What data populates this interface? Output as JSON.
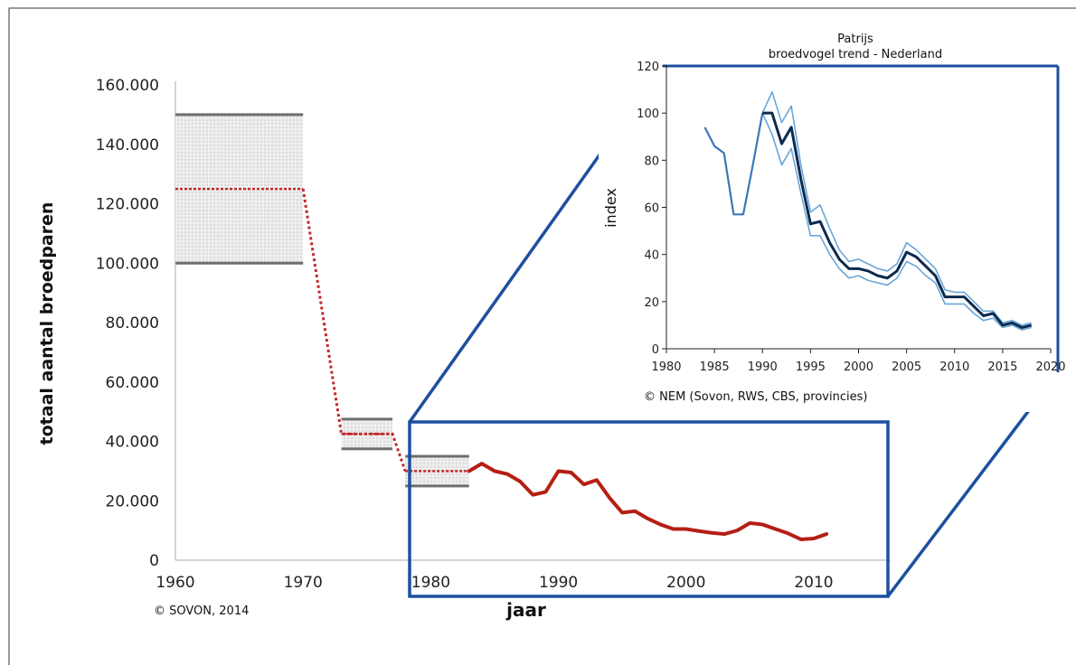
{
  "chart_data": [
    {
      "type": "line",
      "xlabel": "jaar",
      "ylabel": "totaal aantal broedparen",
      "xlim": [
        1960,
        2015
      ],
      "ylim": [
        0,
        160000
      ],
      "x_ticks": [
        "1960",
        "1970",
        "1980",
        "1990",
        "2000",
        "2010"
      ],
      "y_ticks": [
        "0",
        "20.000",
        "40.000",
        "60.000",
        "80.000",
        "100.000",
        "120.000",
        "140.000",
        "160.000"
      ],
      "credit": "© SOVON, 2014",
      "estimate_ranges": [
        {
          "x": [
            1960,
            1970
          ],
          "low": 100000,
          "mid": 125000,
          "high": 150000
        },
        {
          "x": [
            1973,
            1977
          ],
          "low": 37500,
          "mid": 42500,
          "high": 47500
        },
        {
          "x": [
            1978,
            1983
          ],
          "low": 25000,
          "mid": 30000,
          "high": 35000
        }
      ],
      "connector": [
        [
          1970,
          125000
        ],
        [
          1973,
          42500
        ],
        [
          1977,
          42500
        ],
        [
          1978,
          30000
        ]
      ],
      "series": [
        {
          "color": "#b41f14",
          "x": [
            1983,
            1984,
            1985,
            1986,
            1987,
            1988,
            1989,
            1990,
            1991,
            1992,
            1993,
            1994,
            1995,
            1996,
            1997,
            1998,
            1999,
            2000,
            2001,
            2002,
            2003,
            2004,
            2005,
            2006,
            2007,
            2008,
            2009,
            2010,
            2011
          ],
          "y": [
            30000,
            32500,
            30000,
            29000,
            26500,
            22000,
            23000,
            30000,
            29500,
            25500,
            27000,
            21000,
            16000,
            16500,
            14000,
            12000,
            10500,
            10500,
            9800,
            9200,
            8800,
            10000,
            12500,
            12000,
            10500,
            9000,
            7000,
            7300,
            8800
          ]
        }
      ]
    },
    {
      "type": "line",
      "title": "Patrijs",
      "subtitle": "broedvogel trend - Nederland",
      "ylabel": "index",
      "xlim": [
        1980,
        2020
      ],
      "ylim": [
        0,
        120
      ],
      "x_ticks": [
        "1980",
        "1985",
        "1990",
        "1995",
        "2000",
        "2005",
        "2010",
        "2015",
        "2020"
      ],
      "y_ticks": [
        "0",
        "20",
        "40",
        "60",
        "80",
        "100",
        "120"
      ],
      "credit": "© NEM (Sovon, RWS, CBS, provincies)",
      "series": [
        {
          "color": "#3a78b8",
          "x": [
            1984,
            1985,
            1986,
            1987,
            1988,
            1989,
            1990
          ],
          "y": [
            94,
            86,
            83,
            57,
            57,
            78,
            100
          ]
        },
        {
          "color": "#0b2a4f",
          "x": [
            1990,
            1991,
            1992,
            1993,
            1994,
            1995,
            1996,
            1997,
            1998,
            1999,
            2000,
            2001,
            2002,
            2003,
            2004,
            2005,
            2006,
            2007,
            2008,
            2009,
            2010,
            2011,
            2012,
            2013,
            2014,
            2015,
            2016,
            2017,
            2018
          ],
          "y": [
            100,
            100,
            87,
            94,
            72,
            53,
            54,
            45,
            38,
            34,
            34,
            33,
            31,
            30,
            33,
            41,
            39,
            35,
            31,
            22,
            22,
            22,
            18,
            14,
            15,
            10,
            11,
            9,
            10
          ]
        },
        {
          "color": "#6aa6d8",
          "x": [
            1990,
            1991,
            1992,
            1993,
            1994,
            1995,
            1996,
            1997,
            1998,
            1999,
            2000,
            2001,
            2002,
            2003,
            2004,
            2005,
            2006,
            2007,
            2008,
            2009,
            2010,
            2011,
            2012,
            2013,
            2014,
            2015,
            2016,
            2017,
            2018
          ],
          "y": [
            100,
            109,
            96,
            103,
            78,
            58,
            61,
            51,
            42,
            37,
            38,
            36,
            34,
            33,
            36,
            45,
            42,
            38,
            34,
            25,
            24,
            24,
            20,
            16,
            16,
            11,
            12,
            10,
            11
          ]
        },
        {
          "color": "#6aa6d8",
          "x": [
            1990,
            1991,
            1992,
            1993,
            1994,
            1995,
            1996,
            1997,
            1998,
            1999,
            2000,
            2001,
            2002,
            2003,
            2004,
            2005,
            2006,
            2007,
            2008,
            2009,
            2010,
            2011,
            2012,
            2013,
            2014,
            2015,
            2016,
            2017,
            2018
          ],
          "y": [
            100,
            91,
            78,
            85,
            66,
            48,
            48,
            40,
            34,
            30,
            31,
            29,
            28,
            27,
            30,
            37,
            35,
            31,
            28,
            19,
            19,
            19,
            15,
            12,
            13,
            9,
            10,
            8,
            9
          ]
        }
      ]
    }
  ]
}
